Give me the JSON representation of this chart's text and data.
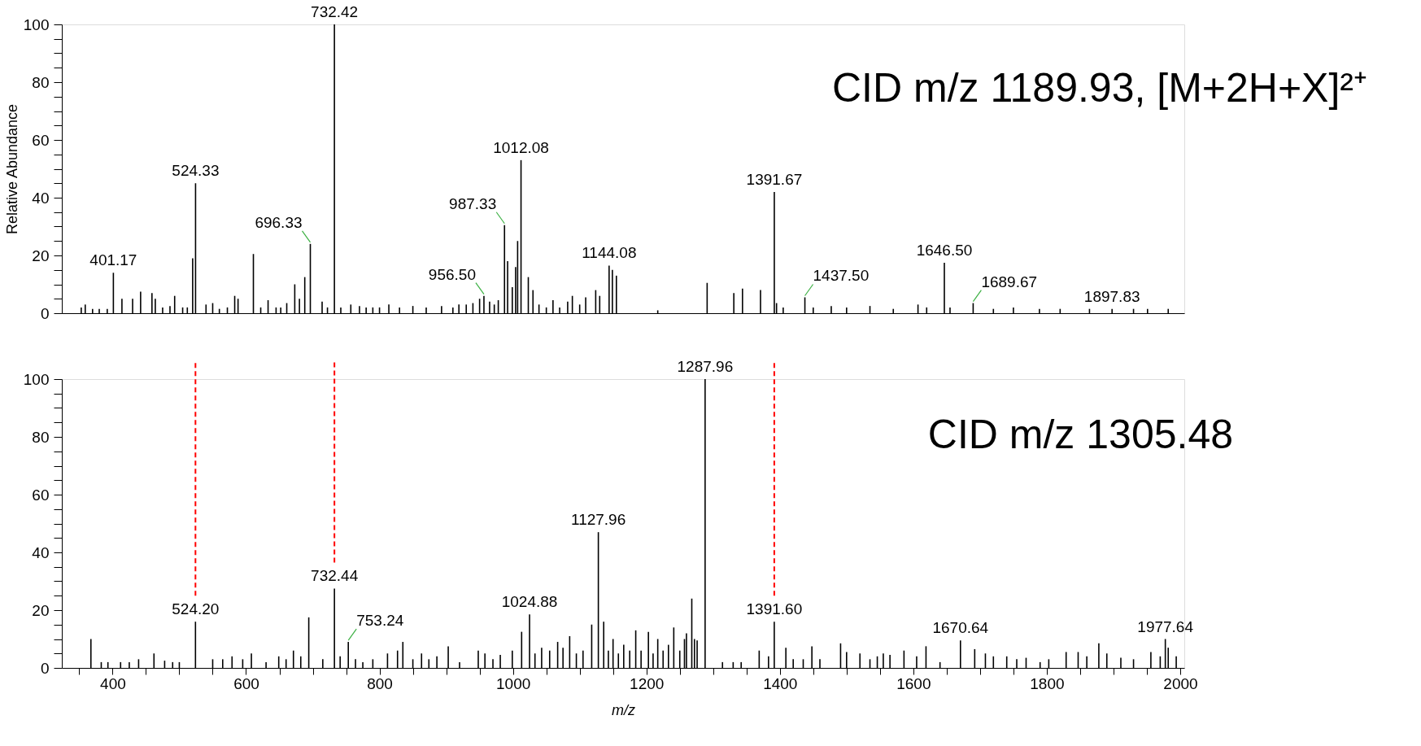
{
  "chart_data": [
    {
      "type": "bar",
      "title": "CID m/z 1189.93, [M+2H+X]²⁺",
      "ylabel": "Relative Abundance",
      "color": "#000000",
      "grid": false,
      "tick_labels": "y",
      "xlim": [
        330,
        2000
      ],
      "ylim": [
        0,
        100
      ],
      "yticks": [
        0,
        {
          "value": 5,
          "label": null
        },
        {
          "value": 10,
          "label": null
        },
        {
          "value": 15,
          "label": null
        },
        20,
        {
          "value": 25,
          "label": null
        },
        {
          "value": 30,
          "label": null
        },
        {
          "value": 35,
          "label": null
        },
        40,
        {
          "value": 45,
          "label": null
        },
        {
          "value": 50,
          "label": null
        },
        {
          "value": 55,
          "label": null
        },
        60,
        {
          "value": 65,
          "label": null
        },
        {
          "value": 70,
          "label": null
        },
        {
          "value": 75,
          "label": null
        },
        80,
        {
          "value": 85,
          "label": null
        },
        {
          "value": 90,
          "label": null
        },
        {
          "value": 95,
          "label": null
        },
        100
      ],
      "x": [
        353,
        359,
        370,
        380,
        392,
        401.17,
        414,
        430,
        442,
        459,
        464,
        475,
        486,
        493,
        505,
        512,
        520,
        524.33,
        540,
        550,
        560,
        572,
        583,
        588,
        611,
        622,
        633,
        645,
        652,
        661,
        673,
        680,
        688,
        696.33,
        714,
        722,
        732.42,
        742,
        757,
        770,
        780,
        790,
        800,
        814,
        830,
        850,
        870,
        893,
        910,
        919,
        930,
        940,
        950,
        956.5,
        965,
        972,
        978,
        987.33,
        992,
        999,
        1004,
        1007,
        1012.08,
        1023,
        1030,
        1039,
        1050,
        1060,
        1070,
        1082,
        1089,
        1100,
        1109,
        1124,
        1130,
        1144.08,
        1149,
        1155,
        1217,
        1291,
        1331,
        1344,
        1371,
        1391.67,
        1395,
        1405,
        1437.5,
        1450,
        1477,
        1500,
        1535,
        1570,
        1607,
        1620,
        1646.5,
        1655,
        1689.67,
        1720,
        1750,
        1789,
        1820,
        1864,
        1897.83,
        1930,
        1951,
        1982
      ],
      "values": [
        2,
        3,
        1.5,
        1.5,
        1.5,
        14,
        5,
        5,
        7.5,
        7,
        5,
        2,
        2.5,
        6,
        2,
        2,
        19,
        45,
        3,
        3.5,
        1.5,
        2,
        6,
        5,
        20.5,
        2,
        4.5,
        2,
        2,
        3.5,
        10,
        5,
        12.5,
        24,
        4,
        2,
        100,
        2,
        3,
        2.5,
        2,
        2,
        2,
        3,
        2,
        2.5,
        2,
        2.5,
        2,
        3,
        3,
        3.5,
        5,
        6,
        4,
        3,
        4.5,
        30.5,
        18,
        9,
        16,
        25,
        53,
        12.5,
        8,
        3,
        2,
        4.5,
        2,
        4,
        6,
        3,
        5.5,
        8,
        6,
        16.5,
        15,
        13,
        1,
        10.5,
        7,
        8.5,
        8,
        42,
        3.5,
        2,
        5.5,
        2,
        2.5,
        2,
        2.5,
        1.5,
        3,
        2,
        17.5,
        2,
        3.5,
        1.5,
        2,
        1.5,
        1.5,
        1.5,
        1.5,
        1.5,
        1.5,
        1.5
      ],
      "annotations": [
        {
          "text": "401.17",
          "x": 401.17,
          "y": 14
        },
        {
          "text": "524.33",
          "x": 524.33,
          "y": 45
        },
        {
          "text": "696.33",
          "x": 696.33,
          "y": 24
        },
        {
          "text": "732.42",
          "x": 732.42,
          "y": 100
        },
        {
          "text": "956.50",
          "x": 956.5,
          "y": 6
        },
        {
          "text": "987.33",
          "x": 987.33,
          "y": 30.5
        },
        {
          "text": "1012.08",
          "x": 1012.08,
          "y": 53
        },
        {
          "text": "1144.08",
          "x": 1144.08,
          "y": 16.5
        },
        {
          "text": "1391.67",
          "x": 1391.67,
          "y": 42
        },
        {
          "text": "1437.50",
          "x": 1437.5,
          "y": 5.5
        },
        {
          "text": "1646.50",
          "x": 1646.5,
          "y": 17.5
        },
        {
          "text": "1689.67",
          "x": 1689.67,
          "y": 3.5
        },
        {
          "text": "1897.83",
          "x": 1897.83,
          "y": 1.5
        }
      ]
    },
    {
      "type": "bar",
      "title": "CID m/z 1305.48",
      "xlabel": "m/z",
      "color": "#000000",
      "grid": false,
      "xlim": [
        330,
        2000
      ],
      "ylim": [
        0,
        100
      ],
      "xticks": [
        {
          "value": 350,
          "label": null
        },
        400,
        {
          "value": 450,
          "label": null
        },
        {
          "value": 500,
          "label": null
        },
        {
          "value": 550,
          "label": null
        },
        600,
        {
          "value": 650,
          "label": null
        },
        {
          "value": 700,
          "label": null
        },
        {
          "value": 750,
          "label": null
        },
        800,
        {
          "value": 850,
          "label": null
        },
        {
          "value": 900,
          "label": null
        },
        {
          "value": 950,
          "label": null
        },
        1000,
        {
          "value": 1050,
          "label": null
        },
        {
          "value": 1100,
          "label": null
        },
        {
          "value": 1150,
          "label": null
        },
        1200,
        {
          "value": 1250,
          "label": null
        },
        {
          "value": 1300,
          "label": null
        },
        {
          "value": 1350,
          "label": null
        },
        1400,
        {
          "value": 1450,
          "label": null
        },
        {
          "value": 1500,
          "label": null
        },
        {
          "value": 1550,
          "label": null
        },
        1600,
        {
          "value": 1650,
          "label": null
        },
        {
          "value": 1700,
          "label": null
        },
        {
          "value": 1750,
          "label": null
        },
        1800,
        {
          "value": 1850,
          "label": null
        },
        {
          "value": 1900,
          "label": null
        },
        {
          "value": 1950,
          "label": null
        },
        2000
      ],
      "yticks": [
        0,
        {
          "value": 5,
          "label": null
        },
        {
          "value": 10,
          "label": null
        },
        {
          "value": 15,
          "label": null
        },
        20,
        {
          "value": 25,
          "label": null
        },
        {
          "value": 30,
          "label": null
        },
        {
          "value": 35,
          "label": null
        },
        40,
        {
          "value": 45,
          "label": null
        },
        {
          "value": 50,
          "label": null
        },
        {
          "value": 55,
          "label": null
        },
        60,
        {
          "value": 65,
          "label": null
        },
        {
          "value": 70,
          "label": null
        },
        {
          "value": 75,
          "label": null
        },
        80,
        {
          "value": 85,
          "label": null
        },
        {
          "value": 90,
          "label": null
        },
        {
          "value": 95,
          "label": null
        },
        100
      ],
      "ref_lines": [
        {
          "axis": "x",
          "value": 524.2,
          "color": "#ff0000",
          "line_style": "dashed"
        },
        {
          "axis": "x",
          "value": 732.44,
          "color": "#ff0000",
          "line_style": "dashed"
        },
        {
          "axis": "x",
          "value": 1391.6,
          "color": "#ff0000",
          "line_style": "dashed"
        }
      ],
      "x": [
        367.5,
        383,
        393,
        412,
        425,
        439,
        462,
        478,
        490,
        500,
        524.2,
        550,
        565,
        579,
        595,
        608,
        630,
        649,
        660,
        671,
        682,
        694,
        715,
        732.44,
        741,
        753.24,
        764,
        775,
        790,
        812,
        827,
        835,
        850,
        863,
        874,
        886,
        903,
        920,
        948,
        958,
        970,
        981,
        999,
        1013,
        1024.88,
        1033,
        1043,
        1055,
        1067,
        1075,
        1085,
        1095,
        1105,
        1118,
        1127.96,
        1136,
        1143,
        1150,
        1158,
        1166,
        1175,
        1184,
        1192,
        1203,
        1210,
        1217,
        1225,
        1233,
        1241,
        1250,
        1257,
        1260,
        1268,
        1272,
        1276,
        1287.96,
        1314,
        1330,
        1342,
        1369,
        1383,
        1391.6,
        1409,
        1420,
        1435,
        1448,
        1460,
        1491,
        1500,
        1520,
        1535,
        1546,
        1555,
        1565,
        1586,
        1605,
        1619,
        1640,
        1670.64,
        1692,
        1708,
        1720,
        1740,
        1755,
        1769,
        1790,
        1803,
        1829,
        1847,
        1860,
        1878,
        1890,
        1911,
        1930,
        1956,
        1970,
        1977.64,
        1982,
        1994
      ],
      "values": [
        10,
        2,
        2,
        2,
        2,
        3,
        5,
        2.5,
        2,
        2,
        16,
        3,
        3,
        4,
        3,
        5,
        2,
        4,
        3,
        6,
        4,
        17.5,
        3,
        27.5,
        4,
        9,
        3,
        2,
        3,
        5,
        6,
        9,
        3,
        5,
        3,
        4,
        7.5,
        2,
        6,
        5,
        3,
        4.5,
        6,
        12.5,
        18.5,
        5,
        7,
        6,
        9,
        7,
        11,
        5,
        6,
        15,
        47,
        16,
        6,
        10,
        5,
        8,
        6,
        13,
        6,
        12.5,
        5,
        10,
        6,
        8,
        14,
        6,
        10,
        12,
        24,
        10,
        9.5,
        100,
        2,
        2,
        2,
        6,
        4,
        16,
        7,
        3,
        3,
        7.5,
        3,
        8.5,
        5.5,
        5,
        3,
        4,
        5,
        4.5,
        6,
        4,
        7.5,
        2,
        9.5,
        6.5,
        5,
        4,
        4,
        3,
        3.5,
        2,
        3,
        5.5,
        5.5,
        4,
        8.5,
        5,
        3.5,
        3,
        5.5,
        4,
        10,
        7,
        4
      ],
      "annotations": [
        {
          "text": "524.20",
          "x": 524.2,
          "y": 16
        },
        {
          "text": "732.44",
          "x": 732.44,
          "y": 27.5
        },
        {
          "text": "753.24",
          "x": 753.24,
          "y": 9
        },
        {
          "text": "1024.88",
          "x": 1024.88,
          "y": 18.5
        },
        {
          "text": "1127.96",
          "x": 1127.96,
          "y": 47
        },
        {
          "text": "1287.96",
          "x": 1287.96,
          "y": 100
        },
        {
          "text": "1391.60",
          "x": 1391.6,
          "y": 16
        },
        {
          "text": "1670.64",
          "x": 1670.64,
          "y": 9.5
        },
        {
          "text": "1977.64",
          "x": 1977.64,
          "y": 10
        }
      ]
    }
  ]
}
